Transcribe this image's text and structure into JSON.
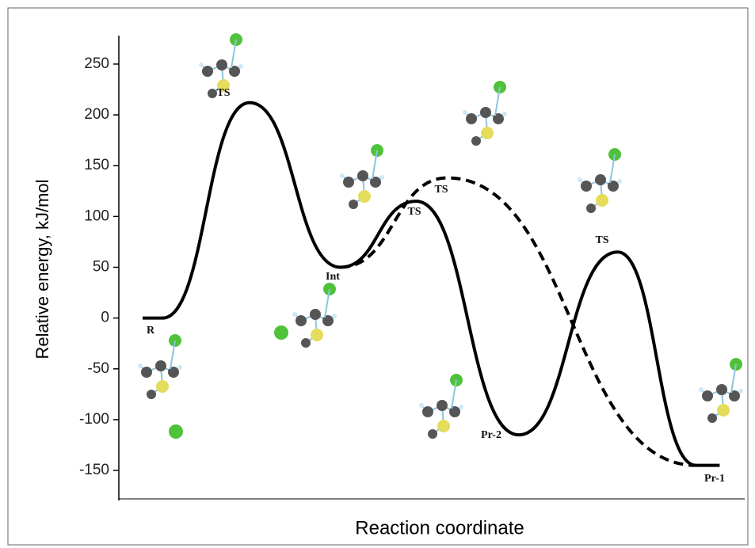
{
  "chart_data": {
    "type": "line",
    "y_label": "Relative energy, kJ/mol",
    "x_label": "Reaction coordinate",
    "ylim": [
      -178,
      278
    ],
    "yticks": [
      -150,
      -100,
      -50,
      0,
      50,
      100,
      150,
      200,
      250
    ],
    "xlim": [
      0,
      100
    ],
    "series": [
      {
        "style": "solid",
        "color": "#000000",
        "x": [
          3.8,
          7,
          20.9,
          35.4,
          47.5,
          63.9,
          79.7,
          92.2,
          96
        ],
        "values": [
          0,
          0,
          212,
          50,
          115,
          -115,
          65,
          -145,
          -145
        ]
      },
      {
        "style": "dashed",
        "color": "#000000",
        "x": [
          35.4,
          52.5,
          92.2
        ],
        "values": [
          50,
          138,
          -145
        ]
      }
    ],
    "annotations": [
      "R",
      "TS",
      "Int",
      "TS",
      "TS",
      "Pr-2",
      "TS",
      "Pr-1"
    ]
  }
}
